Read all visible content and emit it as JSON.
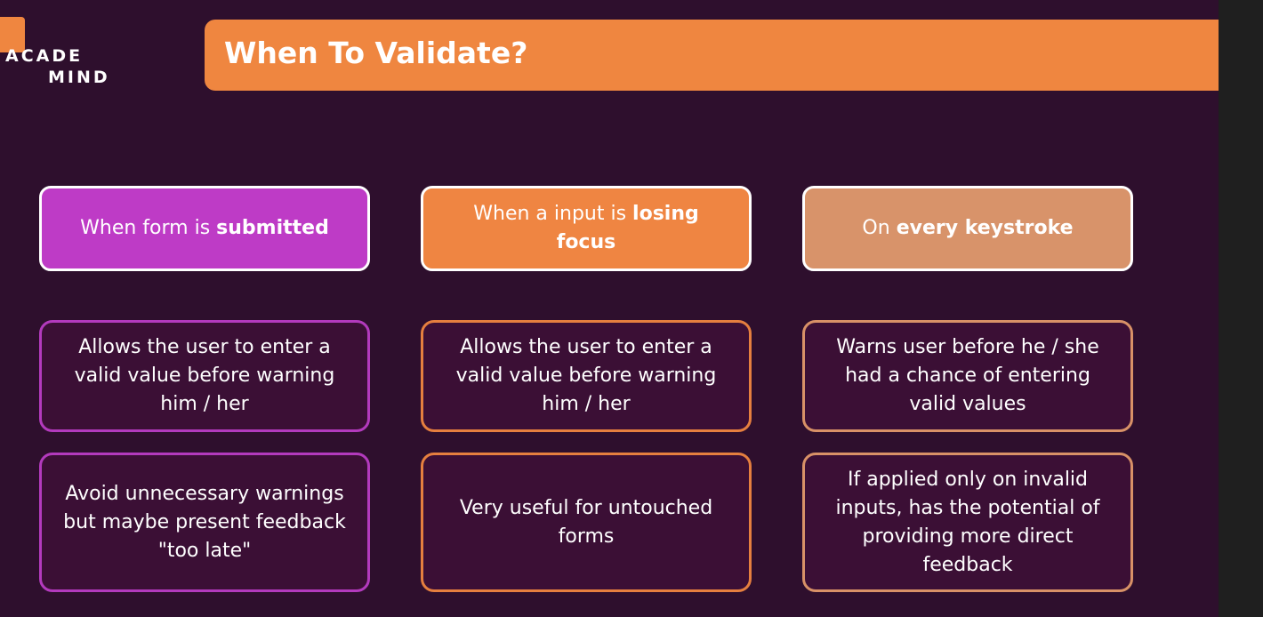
{
  "logo": {
    "line1": "ACADE",
    "line2": "MIND"
  },
  "title": "When To Validate?",
  "columns": [
    {
      "header_prefix": "When form is ",
      "header_bold": "submitted",
      "header_suffix": "",
      "points": [
        "Allows the user to enter a valid value before warning him / her",
        "Avoid unnecessary warnings but maybe present feedback \"too late\""
      ]
    },
    {
      "header_prefix": "When a input is ",
      "header_bold": "losing focus",
      "header_suffix": "",
      "points": [
        "Allows the user to enter a valid value before warning him / her",
        "Very useful for untouched forms"
      ]
    },
    {
      "header_prefix": "On ",
      "header_bold": "every keystroke",
      "header_suffix": "",
      "points": [
        "Warns user before he / she had a chance of entering valid values",
        "If applied only on invalid inputs, has the potential of providing more direct feedback"
      ]
    }
  ],
  "colors": {
    "background": "#2e0f2d",
    "accent_orange": "#ef8640",
    "purple": "#be3bc6",
    "orange": "#ef8542",
    "tan": "#d8936a"
  }
}
